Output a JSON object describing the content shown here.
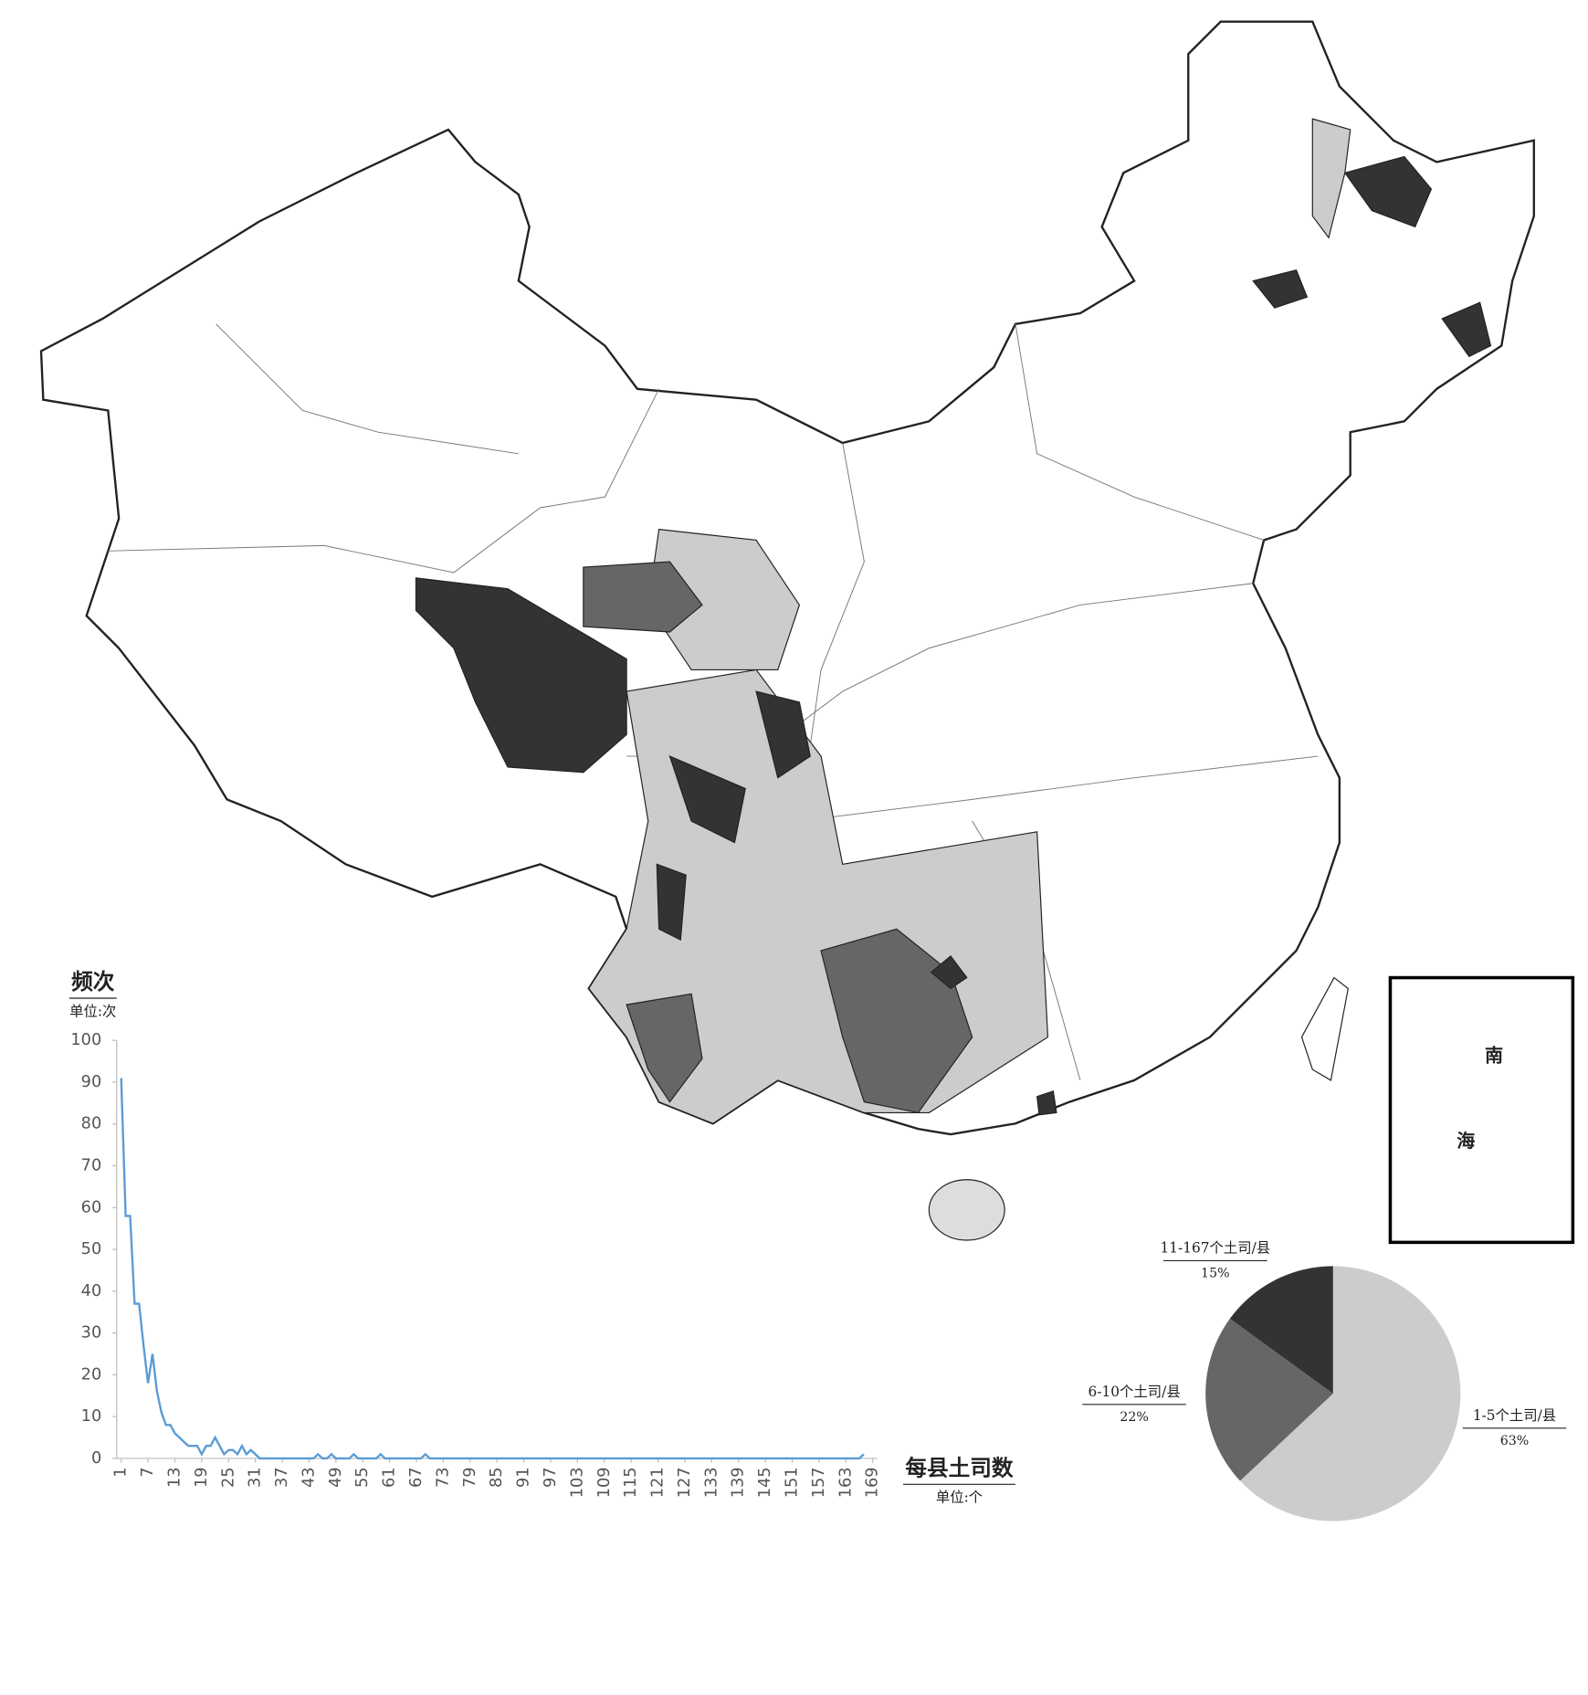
{
  "chart_data": [
    {
      "type": "line",
      "ylabel": "频次",
      "ylabel_unit": "单位:次",
      "xlabel": "每县土司数",
      "xlabel_unit": "单位:个",
      "x": [
        1,
        2,
        3,
        4,
        5,
        6,
        7,
        8,
        9,
        10,
        11,
        12,
        13,
        14,
        15,
        16,
        17,
        18,
        19,
        20,
        21,
        22,
        23,
        24,
        25,
        26,
        27,
        28,
        29,
        30,
        31,
        32,
        44,
        45,
        46,
        47,
        48,
        49,
        52,
        53,
        54,
        58,
        59,
        60,
        68,
        69,
        70,
        166,
        167
      ],
      "values": [
        91,
        58,
        58,
        37,
        37,
        27,
        18,
        25,
        16,
        11,
        8,
        8,
        6,
        5,
        4,
        3,
        3,
        3,
        1,
        3,
        3,
        5,
        3,
        1,
        2,
        2,
        1,
        3,
        1,
        2,
        1,
        0,
        0,
        1,
        0,
        0,
        1,
        0,
        0,
        1,
        0,
        0,
        1,
        0,
        0,
        1,
        0,
        0,
        1
      ],
      "color": "#5b9bd5",
      "xlim": [
        0,
        170
      ],
      "ylim": [
        0,
        100
      ],
      "xticks": [
        1,
        7,
        13,
        19,
        25,
        31,
        37,
        43,
        49,
        55,
        61,
        67,
        73,
        79,
        85,
        91,
        97,
        103,
        109,
        115,
        121,
        127,
        133,
        139,
        145,
        151,
        157,
        163,
        169
      ],
      "yticks": [
        0,
        10,
        20,
        30,
        40,
        50,
        60,
        70,
        80,
        90,
        100
      ]
    },
    {
      "type": "pie",
      "categories": [
        "1-5个土司/县",
        "6-10个土司/县",
        "11-167个土司/县"
      ],
      "values": [
        63,
        22,
        15
      ],
      "value_labels": [
        "63%",
        "22%",
        "15%"
      ],
      "colors": [
        "#cccccc",
        "#666666",
        "#333333"
      ]
    }
  ],
  "map": {
    "labels": [
      "南",
      "海"
    ]
  }
}
